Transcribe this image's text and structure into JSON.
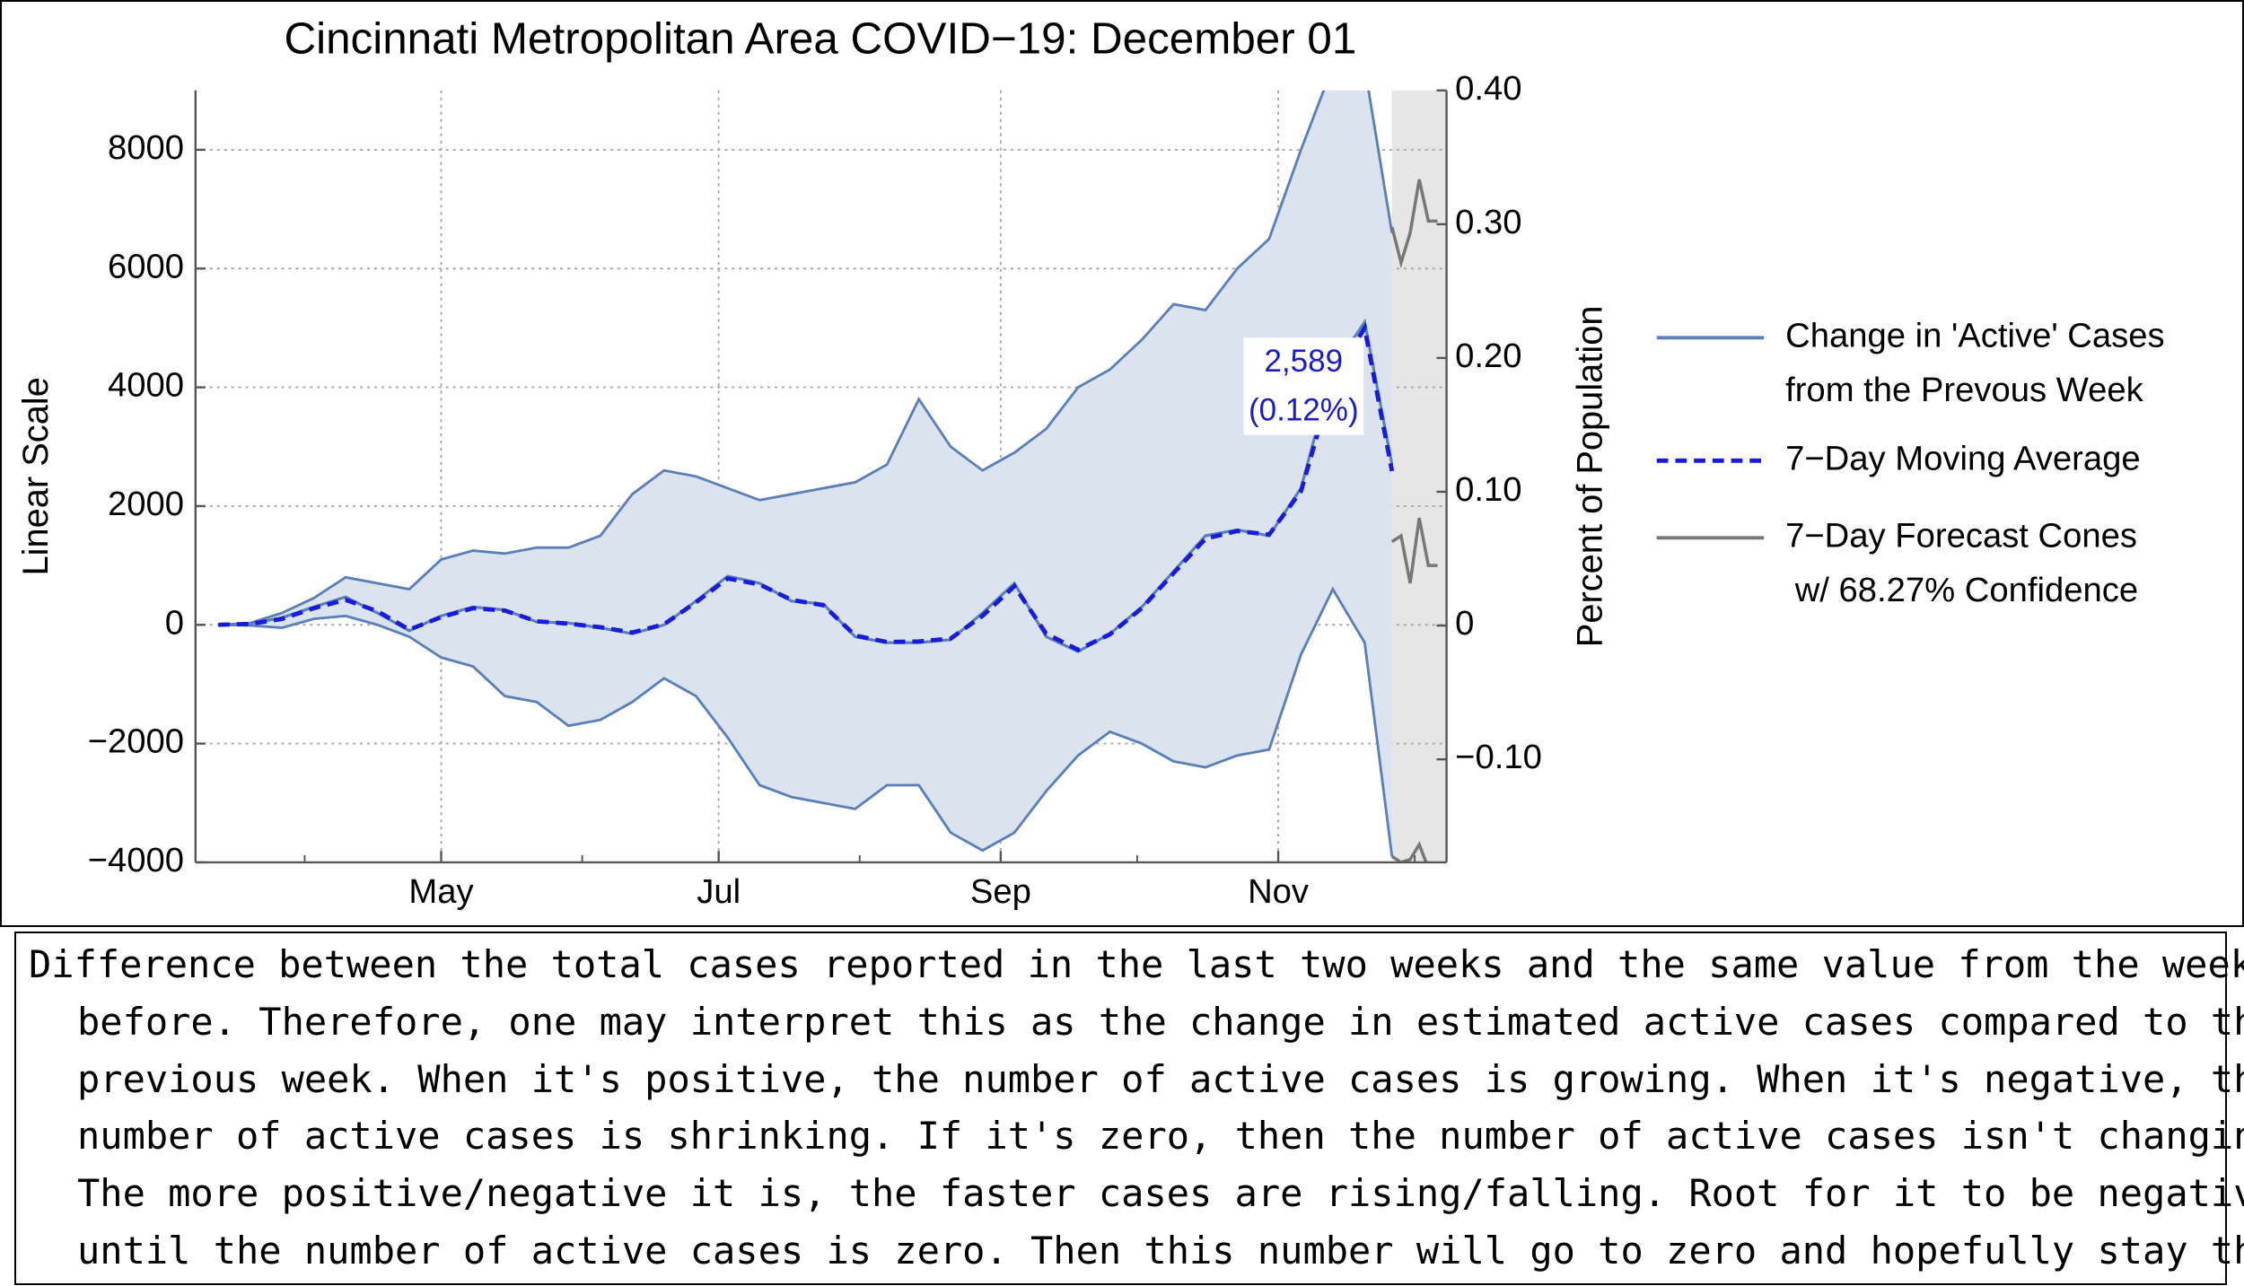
{
  "chart_data": {
    "type": "line",
    "title": "Cincinnati Metropolitan Area COVID−19: December 01",
    "ylabel": "Linear Scale",
    "y2label": "Percent of Population",
    "xlim": [
      67,
      342
    ],
    "xticks": [
      {
        "value": 121,
        "label": "May"
      },
      {
        "value": 182,
        "label": "Jul"
      },
      {
        "value": 244,
        "label": "Sep"
      },
      {
        "value": 305,
        "label": "Nov"
      }
    ],
    "xticks_minor": [
      91,
      152,
      213,
      274,
      335
    ],
    "ylim": [
      -4000,
      9000
    ],
    "yticks": [
      {
        "value": -4000,
        "label": "−4000"
      },
      {
        "value": -2000,
        "label": "−2000"
      },
      0,
      2000,
      4000,
      6000,
      8000
    ],
    "y2lim": [
      -0.177,
      0.4
    ],
    "y2ticks": [
      {
        "value": -0.1,
        "label": "−0.10"
      },
      0,
      {
        "value": 0.1,
        "label": "0.10"
      },
      {
        "value": 0.2,
        "label": "0.20"
      },
      {
        "value": 0.3,
        "label": "0.30"
      },
      {
        "value": 0.4,
        "label": "0.40"
      }
    ],
    "grid": true,
    "x": [
      72,
      79,
      86,
      93,
      100,
      107,
      114,
      121,
      128,
      135,
      142,
      149,
      156,
      163,
      170,
      177,
      184,
      191,
      198,
      205,
      212,
      219,
      226,
      233,
      240,
      247,
      254,
      261,
      268,
      275,
      282,
      289,
      296,
      303,
      310,
      317,
      324,
      330
    ],
    "band": {
      "color": "#dbe3ef",
      "upper": [
        0,
        30,
        200,
        450,
        800,
        700,
        600,
        1100,
        1250,
        1200,
        1300,
        1300,
        1500,
        2200,
        2600,
        2500,
        2300,
        2100,
        2200,
        2300,
        2400,
        2700,
        3800,
        3000,
        2600,
        2900,
        3300,
        4000,
        4300,
        4800,
        5400,
        5300,
        6000,
        6500,
        8000,
        9400,
        9400,
        6600
      ],
      "lower": [
        0,
        -10,
        -50,
        100,
        150,
        0,
        -200,
        -550,
        -700,
        -1200,
        -1300,
        -1700,
        -1600,
        -1300,
        -900,
        -1200,
        -1900,
        -2700,
        -2900,
        -3000,
        -3100,
        -2700,
        -2700,
        -3500,
        -3800,
        -3500,
        -2800,
        -2200,
        -1800,
        -2000,
        -2300,
        -2400,
        -2200,
        -2100,
        -500,
        600,
        -300,
        -3900
      ]
    },
    "series": [
      {
        "name": [
          "Change in 'Active' Cases",
          "from the Prevous Week"
        ],
        "color": "#5b7fb8",
        "dashed": false,
        "values": [
          0,
          20,
          120,
          300,
          470,
          200,
          -100,
          150,
          300,
          250,
          50,
          30,
          -50,
          -150,
          0,
          400,
          820,
          700,
          400,
          350,
          -200,
          -300,
          -300,
          -250,
          200,
          700,
          -200,
          -450,
          -150,
          300,
          900,
          1500,
          1600,
          1500,
          2300,
          4300,
          5100,
          2700
        ]
      },
      {
        "name": [
          "7−Day Moving Average"
        ],
        "color": "#1a1adf",
        "dashed": true,
        "values": [
          0,
          15,
          100,
          280,
          420,
          230,
          -80,
          130,
          280,
          240,
          60,
          20,
          -40,
          -130,
          10,
          380,
          780,
          680,
          420,
          330,
          -180,
          -290,
          -280,
          -230,
          150,
          650,
          -150,
          -420,
          -160,
          280,
          870,
          1450,
          1580,
          1520,
          2250,
          4100,
          5000,
          2589
        ]
      }
    ],
    "forecast": {
      "name": [
        "7−Day Forecast Cones",
        " w/ 68.27% Confidence"
      ],
      "color": "#777777",
      "shade": "#e6e6e6",
      "x": [
        330,
        332,
        334,
        336,
        338,
        340
      ],
      "upper": [
        6700,
        6100,
        6600,
        7500,
        6800,
        6800
      ],
      "center": [
        1400,
        1500,
        700,
        1800,
        1000,
        1000
      ],
      "lower": [
        -3900,
        -4000,
        -3950,
        -3700,
        -4100,
        -4000
      ]
    },
    "annotation": [
      "2,589",
      "(0.12%)"
    ]
  },
  "caption": [
    "Difference between the total cases reported in the last two weeks and the same value from the week",
    "before. Therefore, one may interpret this as the change in estimated active cases compared to the",
    "previous week. When it's positive, the number of active cases is growing. When it's negative, the",
    "number of active cases is shrinking. If it's zero, then the number of active cases isn't changing.",
    "The more positive/negative it is, the faster cases are rising/falling. Root for it to be negative",
    "until the number of active cases is zero. Then this number will go to zero and hopefully stay there."
  ]
}
